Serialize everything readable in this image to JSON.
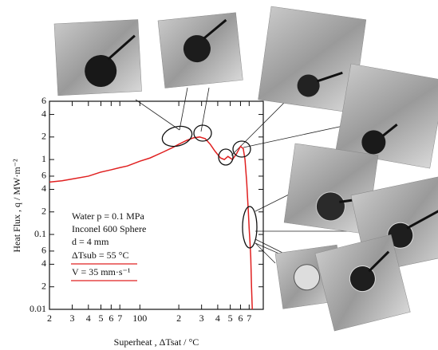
{
  "chart_data": {
    "type": "line",
    "log_x": true,
    "log_y": true,
    "x_label": "Superheat ,  ΔTsat / °C",
    "y_label": "Heat Flux ,  q  /  MW·m⁻²",
    "annotations": [
      "Water  p = 0.1 MPa",
      "Inconel 600 Sphere",
      "d = 4 mm",
      "ΔTsub = 55 °C",
      "V = 35 mm·s⁻¹"
    ],
    "xlim": [
      20,
      900
    ],
    "ylim": [
      0.01,
      6
    ],
    "xticks": [
      {
        "value": 20,
        "label": "2"
      },
      {
        "value": 30,
        "label": "3"
      },
      {
        "value": 40,
        "label": "4"
      },
      {
        "value": 50,
        "label": "5"
      },
      {
        "value": 60,
        "label": "6"
      },
      {
        "value": 70,
        "label": "7"
      },
      100,
      {
        "value": 200,
        "label": "2"
      },
      {
        "value": 300,
        "label": "3"
      },
      {
        "value": 400,
        "label": "4"
      },
      {
        "value": 500,
        "label": "5"
      },
      {
        "value": 600,
        "label": "6"
      },
      {
        "value": 700,
        "label": "7"
      }
    ],
    "yticks": [
      0.01,
      {
        "value": 0.02,
        "label": "2"
      },
      {
        "value": 0.04,
        "label": "4"
      },
      {
        "value": 0.06,
        "label": "6"
      },
      0.1,
      {
        "value": 0.2,
        "label": "2"
      },
      {
        "value": 0.4,
        "label": "4"
      },
      {
        "value": 0.6,
        "label": "6"
      },
      1,
      2,
      4,
      6
    ],
    "series": [
      {
        "color": "#e02020",
        "x": [
          20,
          25,
          30,
          40,
          50,
          60,
          70,
          80,
          100,
          120,
          150,
          180,
          200,
          230,
          260,
          290,
          320,
          350,
          380,
          420,
          450,
          480,
          520,
          560,
          600,
          630,
          650,
          670,
          690,
          700,
          710,
          720,
          730,
          740
        ],
        "values": [
          0.5,
          0.52,
          0.55,
          0.6,
          0.68,
          0.73,
          0.78,
          0.82,
          0.95,
          1.05,
          1.25,
          1.45,
          1.6,
          1.8,
          1.95,
          2.0,
          1.9,
          1.6,
          1.3,
          1.05,
          1.0,
          1.1,
          1.0,
          1.2,
          1.5,
          1.4,
          1.0,
          0.5,
          0.2,
          0.12,
          0.08,
          0.05,
          0.02,
          0.01
        ]
      }
    ]
  }
}
